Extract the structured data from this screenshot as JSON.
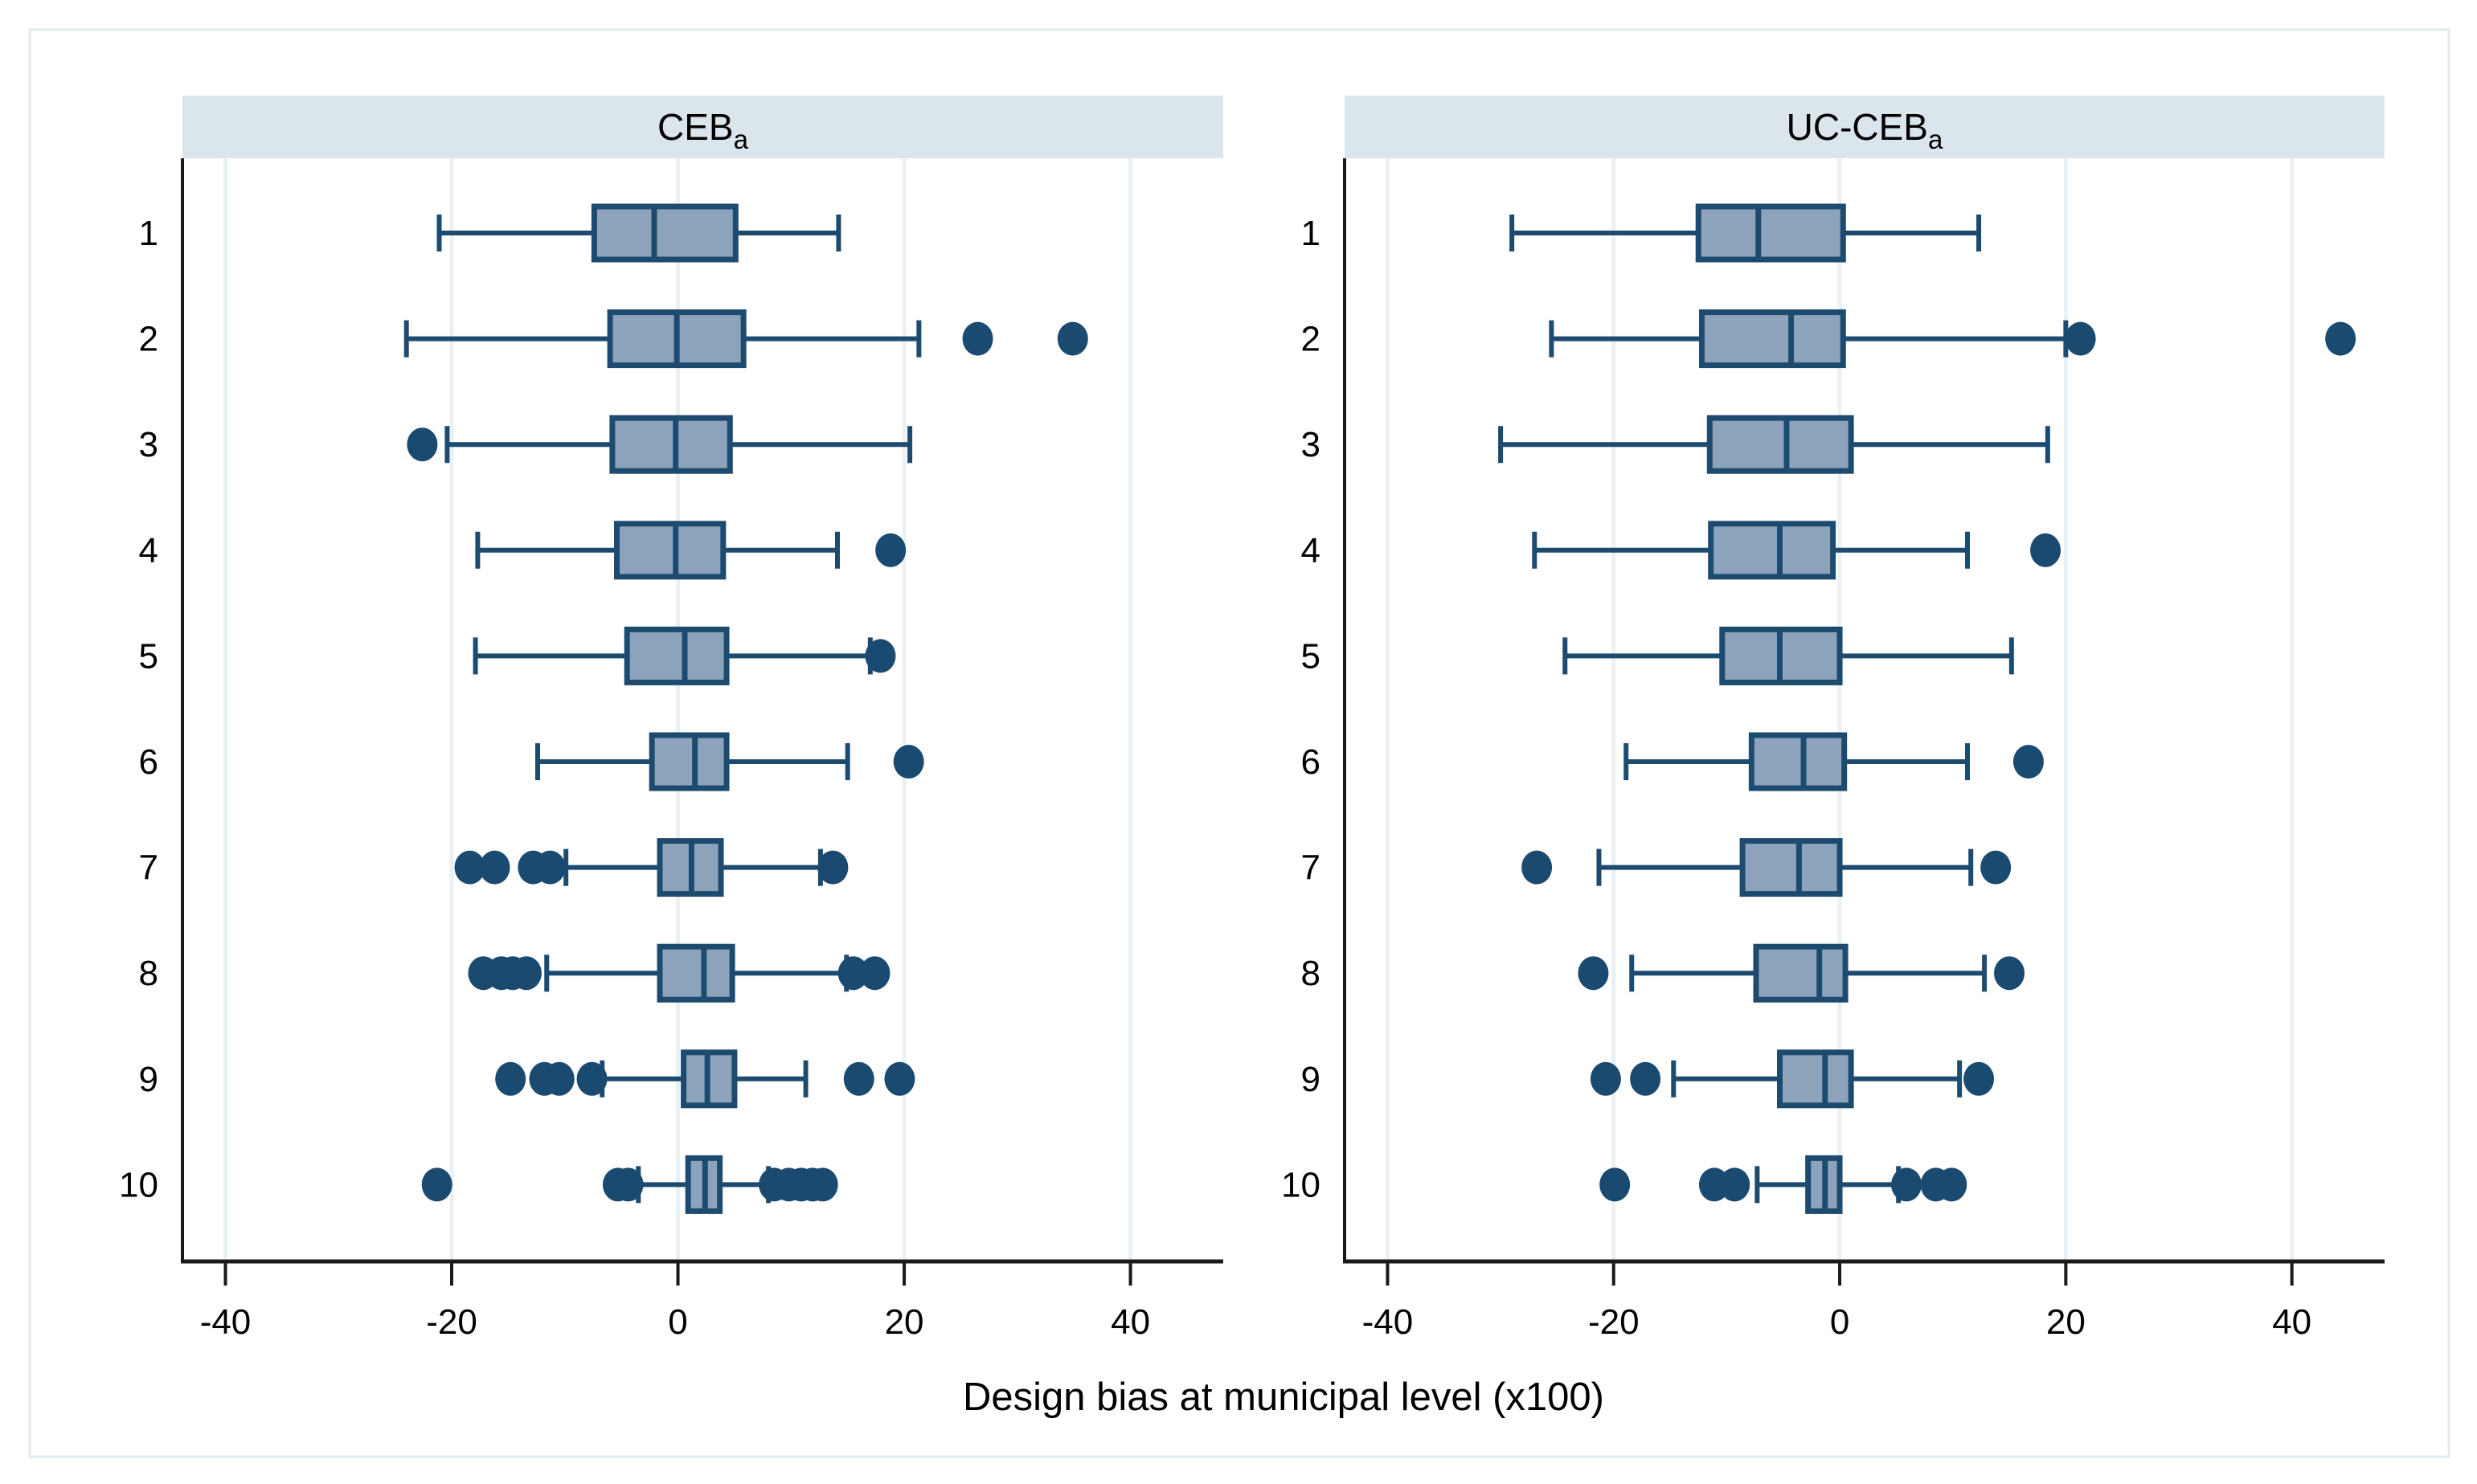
{
  "figure": {
    "xlabel": "Design bias at municipal level (x100)",
    "x_ticks": [
      -40,
      -20,
      0,
      20,
      40
    ],
    "x_tick_labels": [
      "-40",
      "-20",
      "0",
      "20",
      "40"
    ],
    "row_labels": [
      "1",
      "2",
      "3",
      "4",
      "5",
      "6",
      "7",
      "8",
      "9",
      "10"
    ],
    "colors": {
      "box_fill": "#8da3bb",
      "box_stroke": "#1d4b70",
      "whisker": "#1d4b70",
      "outlier": "#1b4a71",
      "gridline": "#e9f1f5",
      "title_band": "#dbe5ec",
      "axis_line": "#1a1a1a",
      "outer_border": "#e2ebf1",
      "text": "#000000"
    }
  },
  "chart_data": [
    {
      "type": "box",
      "orientation": "horizontal",
      "title": "CEB",
      "title_sub": "a",
      "xlabel": "Design bias at municipal level (x100)",
      "xlim": [
        -43.8,
        48.2
      ],
      "x_ticks": [
        -40,
        -20,
        0,
        20,
        40
      ],
      "grid": true,
      "categories": [
        "1",
        "2",
        "3",
        "4",
        "5",
        "6",
        "7",
        "8",
        "9",
        "10"
      ],
      "boxes": [
        {
          "label": "1",
          "low": -21.1,
          "q1": -7.4,
          "median": -2.1,
          "q3": 5.1,
          "high": 14.2,
          "out_low": [],
          "out_high": []
        },
        {
          "label": "2",
          "low": -24.0,
          "q1": -6.0,
          "median": -0.1,
          "q3": 5.8,
          "high": 21.3,
          "out_low": [],
          "out_high": [
            26.5,
            34.9
          ]
        },
        {
          "label": "3",
          "low": -20.4,
          "q1": -5.8,
          "median": -0.2,
          "q3": 4.6,
          "high": 20.5,
          "out_low": [
            -22.6
          ],
          "out_high": []
        },
        {
          "label": "4",
          "low": -17.7,
          "q1": -5.4,
          "median": -0.2,
          "q3": 4.0,
          "high": 14.1,
          "out_low": [],
          "out_high": [
            18.8
          ]
        },
        {
          "label": "5",
          "low": -17.9,
          "q1": -4.5,
          "median": 0.6,
          "q3": 4.3,
          "high": 17.0,
          "out_low": [],
          "out_high": [
            17.9
          ]
        },
        {
          "label": "6",
          "low": -12.4,
          "q1": -2.3,
          "median": 1.5,
          "q3": 4.3,
          "high": 15.0,
          "out_low": [],
          "out_high": [
            20.4
          ]
        },
        {
          "label": "7",
          "low": -9.9,
          "q1": -1.6,
          "median": 1.2,
          "q3": 3.8,
          "high": 12.6,
          "out_low": [
            -18.4,
            -16.2,
            -12.8,
            -11.3
          ],
          "out_high": [
            13.7
          ]
        },
        {
          "label": "8",
          "low": -11.6,
          "q1": -1.6,
          "median": 2.3,
          "q3": 4.8,
          "high": 14.9,
          "out_low": [
            -17.2,
            -15.6,
            -14.6,
            -13.4
          ],
          "out_high": [
            15.5,
            17.4
          ]
        },
        {
          "label": "9",
          "low": -6.7,
          "q1": 0.5,
          "median": 2.6,
          "q3": 5.0,
          "high": 11.3,
          "out_low": [
            -14.8,
            -11.8,
            -10.5,
            -7.6
          ],
          "out_high": [
            16.0,
            19.6
          ]
        },
        {
          "label": "10",
          "low": -3.5,
          "q1": 0.9,
          "median": 2.4,
          "q3": 3.7,
          "high": 8.0,
          "out_low": [
            -21.3,
            -5.3,
            -4.4
          ],
          "out_high": [
            8.5,
            9.8,
            10.9,
            11.9,
            12.8
          ]
        }
      ]
    },
    {
      "type": "box",
      "orientation": "horizontal",
      "title": "UC-CEB",
      "title_sub": "a",
      "xlabel": "Design bias at municipal level (x100)",
      "xlim": [
        -43.8,
        48.2
      ],
      "x_ticks": [
        -40,
        -20,
        0,
        20,
        40
      ],
      "grid": true,
      "categories": [
        "1",
        "2",
        "3",
        "4",
        "5",
        "6",
        "7",
        "8",
        "9",
        "10"
      ],
      "boxes": [
        {
          "label": "1",
          "low": -29.0,
          "q1": -12.5,
          "median": -7.2,
          "q3": 0.3,
          "high": 12.3,
          "out_low": [],
          "out_high": []
        },
        {
          "label": "2",
          "low": -25.5,
          "q1": -12.2,
          "median": -4.3,
          "q3": 0.3,
          "high": 20.0,
          "out_low": [],
          "out_high": [
            21.3,
            44.3
          ]
        },
        {
          "label": "3",
          "low": -30.0,
          "q1": -11.5,
          "median": -4.7,
          "q3": 1.0,
          "high": 18.4,
          "out_low": [],
          "out_high": []
        },
        {
          "label": "4",
          "low": -27.0,
          "q1": -11.4,
          "median": -5.3,
          "q3": -0.6,
          "high": 11.3,
          "out_low": [],
          "out_high": [
            18.2
          ]
        },
        {
          "label": "5",
          "low": -24.3,
          "q1": -10.4,
          "median": -5.3,
          "q3": 0.0,
          "high": 15.2,
          "out_low": [],
          "out_high": []
        },
        {
          "label": "6",
          "low": -18.9,
          "q1": -7.8,
          "median": -3.2,
          "q3": 0.4,
          "high": 11.3,
          "out_low": [],
          "out_high": [
            16.7
          ]
        },
        {
          "label": "7",
          "low": -21.3,
          "q1": -8.6,
          "median": -3.6,
          "q3": 0.0,
          "high": 11.6,
          "out_low": [
            -26.8
          ],
          "out_high": [
            13.8
          ]
        },
        {
          "label": "8",
          "low": -18.4,
          "q1": -7.4,
          "median": -1.8,
          "q3": 0.5,
          "high": 12.8,
          "out_low": [
            -21.8
          ],
          "out_high": [
            15.0
          ]
        },
        {
          "label": "9",
          "low": -14.7,
          "q1": -5.3,
          "median": -1.3,
          "q3": 1.0,
          "high": 10.6,
          "out_low": [
            -20.7,
            -17.2
          ],
          "out_high": [
            12.3
          ]
        },
        {
          "label": "10",
          "low": -7.3,
          "q1": -2.8,
          "median": -1.3,
          "q3": 0.0,
          "high": 5.2,
          "out_low": [
            -19.9,
            -11.1,
            -9.3
          ],
          "out_high": [
            5.9,
            8.5,
            9.9
          ]
        }
      ]
    }
  ]
}
